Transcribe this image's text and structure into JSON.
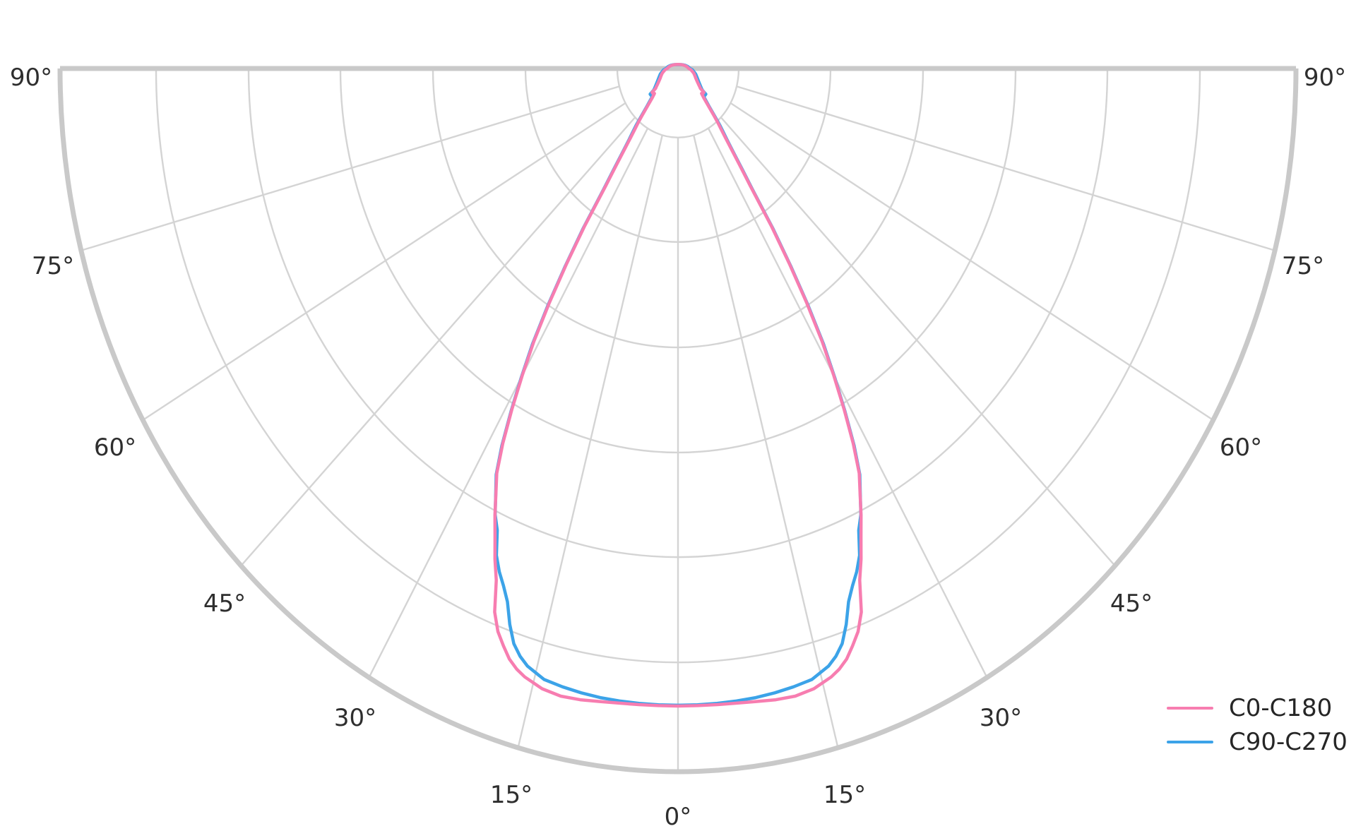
{
  "chart_data": {
    "type": "line",
    "subtype": "polar-photometric",
    "title": "",
    "legend_position": "lower right",
    "grid": true,
    "angle_axis": {
      "unit": "degrees",
      "zero_direction": "down",
      "range_deg": [
        -90,
        90
      ],
      "tick_interval_deg": 15
    },
    "angle_ticks": [
      {
        "deg": 0,
        "label": "0°"
      },
      {
        "deg": 15,
        "label": "15°"
      },
      {
        "deg": 30,
        "label": "30°"
      },
      {
        "deg": 45,
        "label": "45°"
      },
      {
        "deg": 60,
        "label": "60°"
      },
      {
        "deg": 75,
        "label": "75°"
      },
      {
        "deg": 90,
        "label": "90°"
      }
    ],
    "radial_gridlines_rel": [
      0.0983,
      0.2469,
      0.3966,
      0.5463,
      0.6949,
      0.8446,
      1.0
    ],
    "radial_inner_rel": 0.0983,
    "legend_entries": [
      {
        "label": "C0-C180",
        "color": "#f77db0"
      },
      {
        "label": "C90-C270",
        "color": "#3ca3e8"
      }
    ],
    "series": [
      {
        "name": "C90-C270",
        "color": "#3ca3e8",
        "symmetric": true,
        "gamma_deg": [
          0,
          2,
          4,
          6,
          8,
          10,
          12,
          14,
          16,
          17,
          18,
          19,
          20,
          21,
          22,
          23,
          24,
          25,
          26,
          27,
          28,
          29,
          30,
          31,
          32,
          33,
          34,
          35,
          36,
          37,
          38,
          39,
          40,
          41,
          43,
          45,
          47,
          49,
          51,
          52,
          53,
          56,
          60,
          65,
          70,
          75,
          80,
          85,
          90
        ],
        "r_rel": [
          0.9055,
          0.9055,
          0.905,
          0.9045,
          0.9035,
          0.9015,
          0.899,
          0.8955,
          0.884,
          0.874,
          0.86,
          0.836,
          0.807,
          0.788,
          0.772,
          0.752,
          0.719,
          0.7,
          0.673,
          0.648,
          0.607,
          0.557,
          0.507,
          0.457,
          0.397,
          0.335,
          0.275,
          0.21,
          0.175,
          0.148,
          0.129,
          0.116,
          0.105,
          0.0925,
          0.0735,
          0.0625,
          0.0555,
          0.058,
          0.058,
          0.05,
          0.048,
          0.0435,
          0.039,
          0.035,
          0.032,
          0.0295,
          0.026,
          0.0235,
          0.0195
        ],
        "cap_gamma_deg": [
          90,
          95,
          100,
          110,
          120,
          135,
          150,
          165,
          180
        ],
        "cap_r_rel": [
          0.0195,
          0.0178,
          0.016,
          0.0128,
          0.0102,
          0.0078,
          0.0064,
          0.0057,
          0.0055
        ]
      },
      {
        "name": "C0-C180",
        "color": "#f77db0",
        "symmetric": true,
        "gamma_deg": [
          0,
          2,
          4,
          6,
          8,
          10,
          12,
          14,
          16,
          17,
          18,
          19,
          20,
          21,
          22,
          23,
          24,
          25,
          26,
          27,
          28,
          29,
          30,
          31,
          32,
          33,
          34,
          35,
          36,
          37,
          38,
          39,
          40,
          41,
          43,
          45,
          47,
          49,
          51,
          52,
          53,
          56,
          60,
          65,
          70,
          75,
          80,
          85,
          90
        ],
        "r_rel": [
          0.9066,
          0.9066,
          0.9068,
          0.9075,
          0.909,
          0.9115,
          0.9125,
          0.909,
          0.9,
          0.893,
          0.883,
          0.868,
          0.852,
          0.828,
          0.785,
          0.758,
          0.728,
          0.701,
          0.672,
          0.646,
          0.604,
          0.555,
          0.504,
          0.453,
          0.393,
          0.331,
          0.27,
          0.205,
          0.17,
          0.143,
          0.124,
          0.11,
          0.1,
          0.0885,
          0.0705,
          0.059,
          0.052,
          0.054,
          0.054,
          0.046,
          0.0445,
          0.04,
          0.0355,
          0.0315,
          0.029,
          0.0265,
          0.0235,
          0.021,
          0.0175
        ],
        "cap_gamma_deg": [
          90,
          95,
          100,
          110,
          120,
          135,
          150,
          165,
          180
        ],
        "cap_r_rel": [
          0.0175,
          0.016,
          0.0147,
          0.012,
          0.0098,
          0.0077,
          0.0065,
          0.0059,
          0.0057
        ]
      }
    ],
    "style": {
      "grid_color": "#d4d4d4",
      "boundary_color": "#c9c9c9",
      "text_color": "#2e2e2e",
      "background": "#ffffff"
    }
  }
}
